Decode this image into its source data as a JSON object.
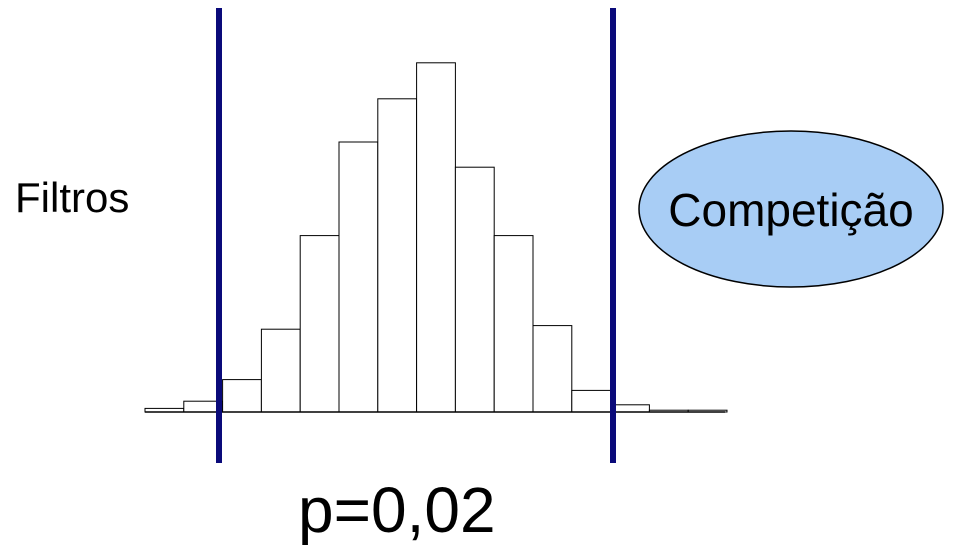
{
  "labels": {
    "left": "Filtros",
    "bubble": "Competição",
    "bottom": "p=0,02"
  },
  "colors": {
    "threshold_line": "#0a0a7a",
    "bubble_fill": "#a8cdf5",
    "bar_fill": "#ffffff",
    "bar_stroke": "#000000"
  },
  "chart_data": {
    "type": "bar",
    "values": [
      1,
      3,
      9,
      23,
      49,
      75,
      87,
      97,
      68,
      49,
      24,
      6,
      2,
      0.5,
      0.5
    ],
    "ylim": [
      0,
      100
    ]
  }
}
